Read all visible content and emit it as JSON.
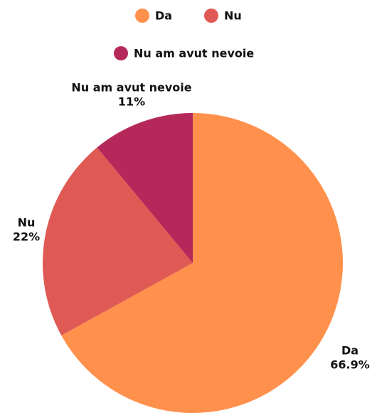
{
  "chart_data": {
    "type": "pie",
    "categories": [
      "Da",
      "Nu",
      "Nu am avut nevoie"
    ],
    "values": [
      66.9,
      22,
      11
    ],
    "value_labels": [
      "66.9%",
      "22%",
      "11%"
    ],
    "colors": [
      "#ff914d",
      "#e05a55",
      "#b5295a"
    ],
    "legend": "top"
  }
}
